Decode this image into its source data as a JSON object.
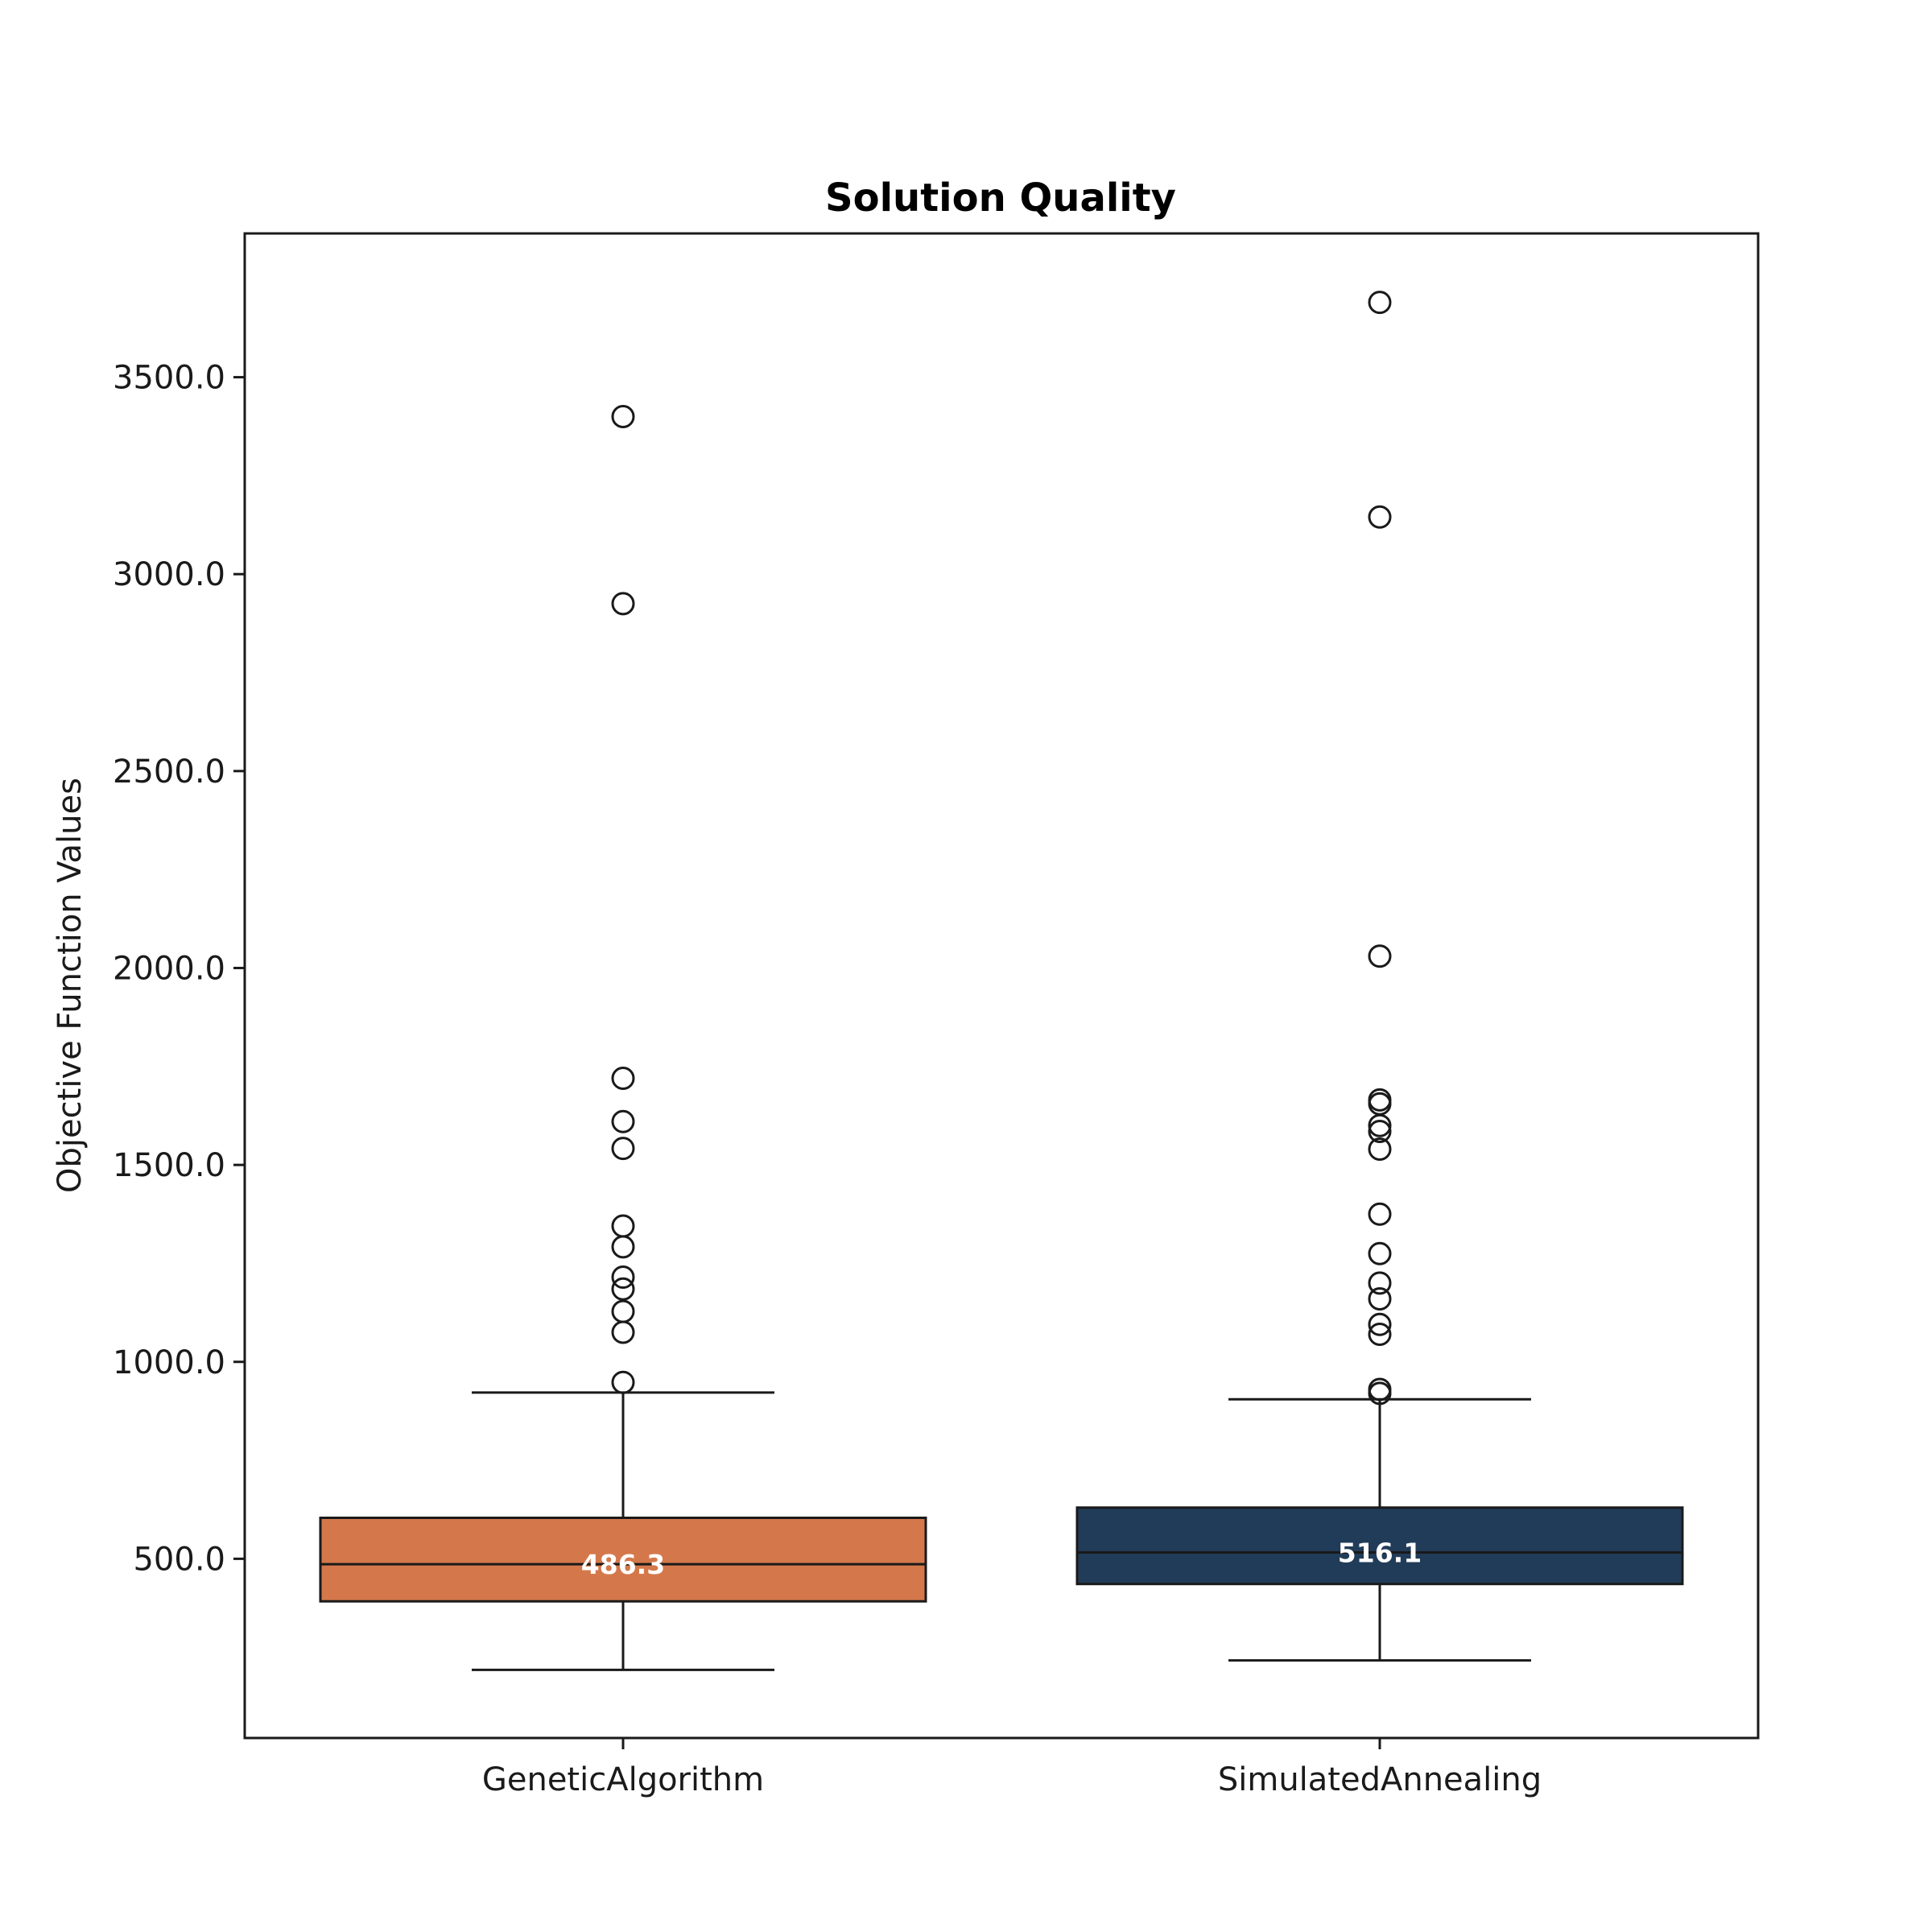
{
  "chart_data": {
    "type": "box",
    "title": "Solution Quality",
    "xlabel": "",
    "ylabel": "Objective Function Values",
    "ylim": [
      45,
      3865
    ],
    "yticks": [
      "500.0",
      "1000.0",
      "1500.0",
      "2000.0",
      "2500.0",
      "3000.0",
      "3500.0"
    ],
    "ytick_values": [
      500,
      1000,
      1500,
      2000,
      2500,
      3000,
      3500
    ],
    "grid": false,
    "series": [
      {
        "name": "GeneticAlgorithm",
        "color": "#d4784b",
        "whisker_low": 218,
        "q1": 392,
        "median": 486.3,
        "q3": 604,
        "whisker_high": 922,
        "median_label": "486.3",
        "outliers": [
          948,
          1075,
          1128,
          1185,
          1215,
          1292,
          1345,
          1542,
          1610,
          1720,
          2925,
          3400
        ]
      },
      {
        "name": "SimulatedAnnealing",
        "color": "#213c58",
        "whisker_low": 242,
        "q1": 436,
        "median": 516.1,
        "q3": 630,
        "whisker_high": 905,
        "median_label": "516.1",
        "outliers": [
          920,
          930,
          1070,
          1095,
          1160,
          1200,
          1275,
          1375,
          1540,
          1585,
          1600,
          1655,
          1665,
          2030,
          3145,
          3690
        ]
      }
    ]
  }
}
